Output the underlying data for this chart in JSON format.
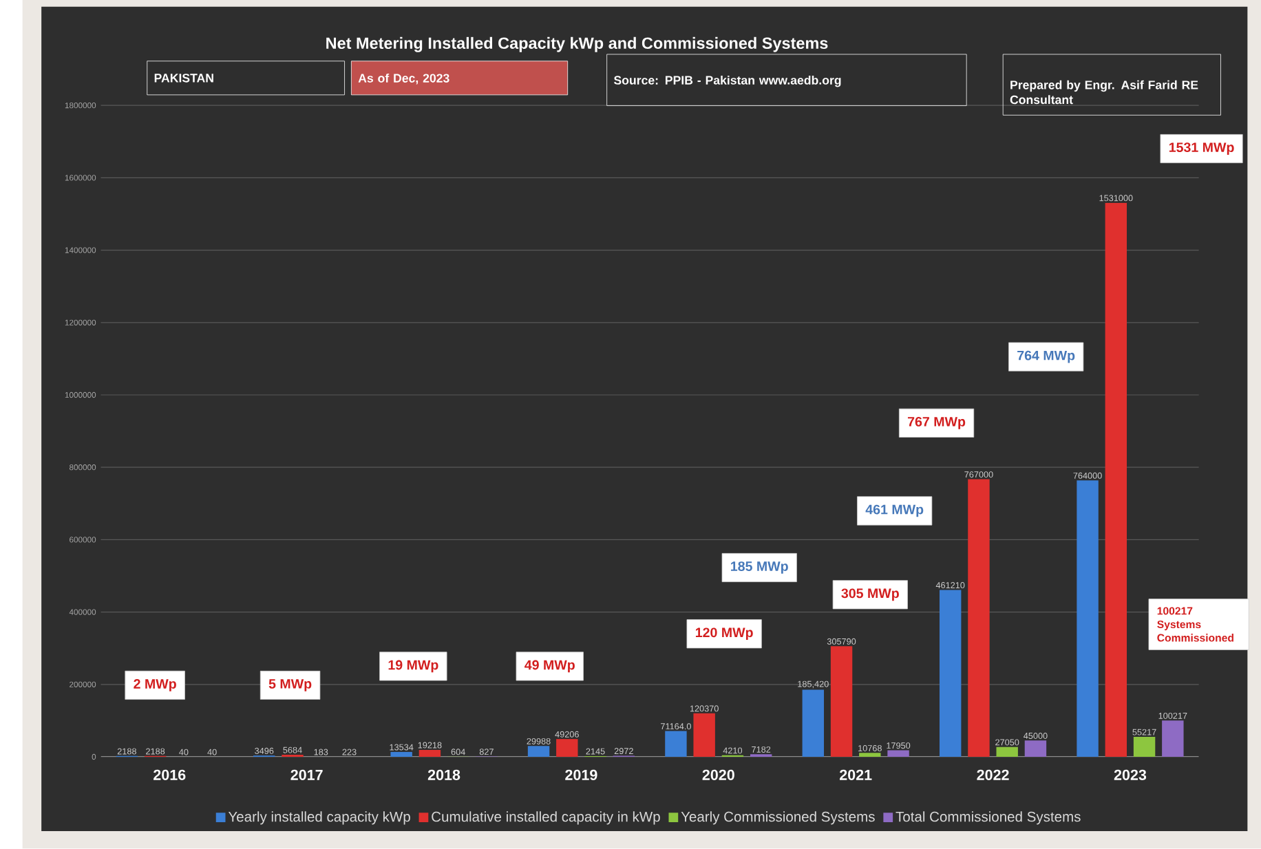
{
  "chart_data": {
    "type": "bar",
    "title": "Net Metering Installed Capacity kWp and Commissioned Systems",
    "categories": [
      "2016",
      "2017",
      "2018",
      "2019",
      "2020",
      "2021",
      "2022",
      "2023"
    ],
    "series": [
      {
        "name": "Yearly installed capacity kWp",
        "color": "#3b7fd6",
        "values": [
          2188,
          3496,
          13534,
          29988,
          71164,
          185420,
          461210,
          764000
        ],
        "value_labels": [
          "2188",
          "3496",
          "13534",
          "29988",
          "71164.0",
          "185,420",
          "461210",
          "764000"
        ]
      },
      {
        "name": "Cumulative installed capacity in kWp",
        "color": "#e0302e",
        "values": [
          2188,
          5684,
          19218,
          49206,
          120370,
          305790,
          767000,
          1531000
        ],
        "value_labels": [
          "2188",
          "5684",
          "19218",
          "49206",
          "120370",
          "305790",
          "767000",
          "1531000"
        ]
      },
      {
        "name": "Yearly  Commissioned Systems",
        "color": "#8dc63f",
        "values": [
          40,
          183,
          604,
          2145,
          4210,
          10768,
          27050,
          55217
        ],
        "value_labels": [
          "40",
          "183",
          "604",
          "2145",
          "4210",
          "10768",
          "27050",
          "55217"
        ]
      },
      {
        "name": "Total Commissioned Systems",
        "color": "#8e6bc4",
        "values": [
          40,
          223,
          827,
          2972,
          7182,
          17950,
          45000,
          100217
        ],
        "value_labels": [
          "40",
          "223",
          "827",
          "2972",
          "7182",
          "17950",
          "45000",
          "100217"
        ]
      }
    ],
    "ylim": [
      0,
      1800000
    ],
    "yticks": [
      0,
      200000,
      400000,
      600000,
      800000,
      1000000,
      1200000,
      1400000,
      1600000,
      1800000
    ],
    "grid": "y",
    "legend": "bottom",
    "annotations": [
      "PAKISTAN",
      "As of Dec, 2023",
      "Source: PPIB - Pakistan www.aedb.org",
      "Prepared by Engr. Asif Farid RE Consultant",
      "2 MWp",
      "5 MWp",
      "19 MWp",
      "49 MWp",
      "120 MWp",
      "185 MWp",
      "305 MWp",
      "461 MWp",
      "767 MWp",
      "764 MWp",
      "1531 MWp",
      "100217 Systems Commissioned"
    ]
  }
}
